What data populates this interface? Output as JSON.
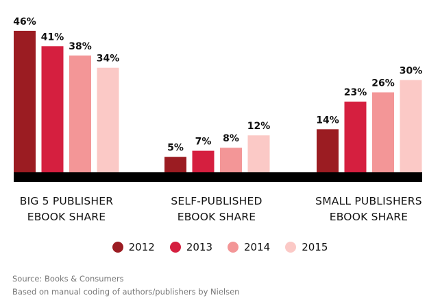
{
  "chart_data": {
    "type": "bar",
    "title": "",
    "xlabel": "",
    "ylabel": "",
    "ylim": [
      0,
      46
    ],
    "grid": false,
    "legend_position": "bottom-center",
    "categories": [
      [
        "BIG 5 PUBLISHER",
        "EBOOK SHARE"
      ],
      [
        "SELF-PUBLISHED",
        "EBOOK SHARE"
      ],
      [
        "SMALL PUBLISHERS",
        "EBOOK SHARE"
      ]
    ],
    "series": [
      {
        "name": "2012",
        "color": "#9b1c22",
        "values": [
          46,
          5,
          14
        ]
      },
      {
        "name": "2013",
        "color": "#d51f3f",
        "values": [
          41,
          7,
          23
        ]
      },
      {
        "name": "2014",
        "color": "#f39697",
        "values": [
          38,
          8,
          26
        ]
      },
      {
        "name": "2015",
        "color": "#fbc9c6",
        "values": [
          34,
          12,
          30
        ]
      }
    ],
    "value_suffix": "%",
    "baseline_color": "#000000"
  },
  "source": {
    "line1": "Source: Books & Consumers",
    "line2": "Based on manual coding of authors/publishers by Nielsen"
  }
}
